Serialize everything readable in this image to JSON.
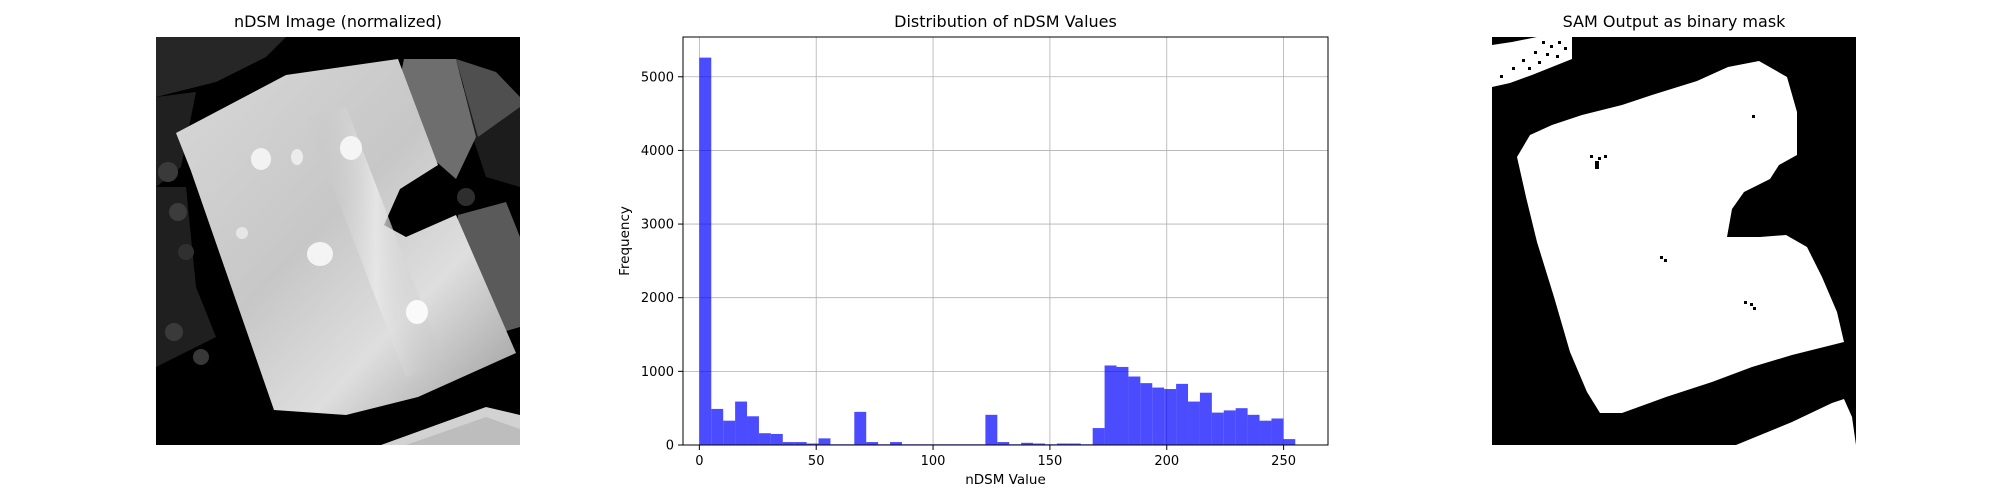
{
  "panels": {
    "left_title": "nDSM Image (normalized)",
    "middle_title": "Distribution of nDSM Values",
    "right_title": "SAM Output as binary mask"
  },
  "chart_data": [
    {
      "type": "image",
      "title": "nDSM Image (normalized)",
      "colormap": "gray"
    },
    {
      "type": "bar",
      "title": "Distribution of nDSM Values",
      "xlabel": "nDSM Value",
      "ylabel": "Frequency",
      "xlim": [
        -7,
        269
      ],
      "ylim": [
        0,
        5540
      ],
      "xticks": [
        0,
        50,
        100,
        150,
        200,
        250
      ],
      "yticks": [
        0,
        1000,
        2000,
        3000,
        4000,
        5000
      ],
      "grid": true,
      "bar_color": "#0000ff",
      "bar_alpha": 0.7,
      "bin_width": 5.1,
      "bin_starts": [
        0,
        5.1,
        10.2,
        15.3,
        20.4,
        25.5,
        30.6,
        35.7,
        40.8,
        45.9,
        51.0,
        56.1,
        61.2,
        66.3,
        71.4,
        76.5,
        81.6,
        86.7,
        91.8,
        96.9,
        102.0,
        107.1,
        112.2,
        117.3,
        122.4,
        127.5,
        132.6,
        137.7,
        142.8,
        147.9,
        153.0,
        158.1,
        163.2,
        168.3,
        173.4,
        178.5,
        183.6,
        188.7,
        193.8,
        198.9,
        204.0,
        209.1,
        214.2,
        219.3,
        224.4,
        229.5,
        234.6,
        239.7,
        244.8,
        249.9
      ],
      "values": [
        5260,
        490,
        330,
        590,
        390,
        160,
        150,
        40,
        40,
        20,
        90,
        10,
        10,
        450,
        40,
        10,
        40,
        10,
        10,
        10,
        10,
        10,
        10,
        10,
        410,
        40,
        10,
        30,
        20,
        10,
        20,
        20,
        10,
        230,
        1080,
        1060,
        930,
        840,
        780,
        760,
        830,
        590,
        710,
        440,
        470,
        500,
        410,
        330,
        360,
        80
      ]
    },
    {
      "type": "image",
      "title": "SAM Output as binary mask",
      "colormap": "binary"
    }
  ]
}
